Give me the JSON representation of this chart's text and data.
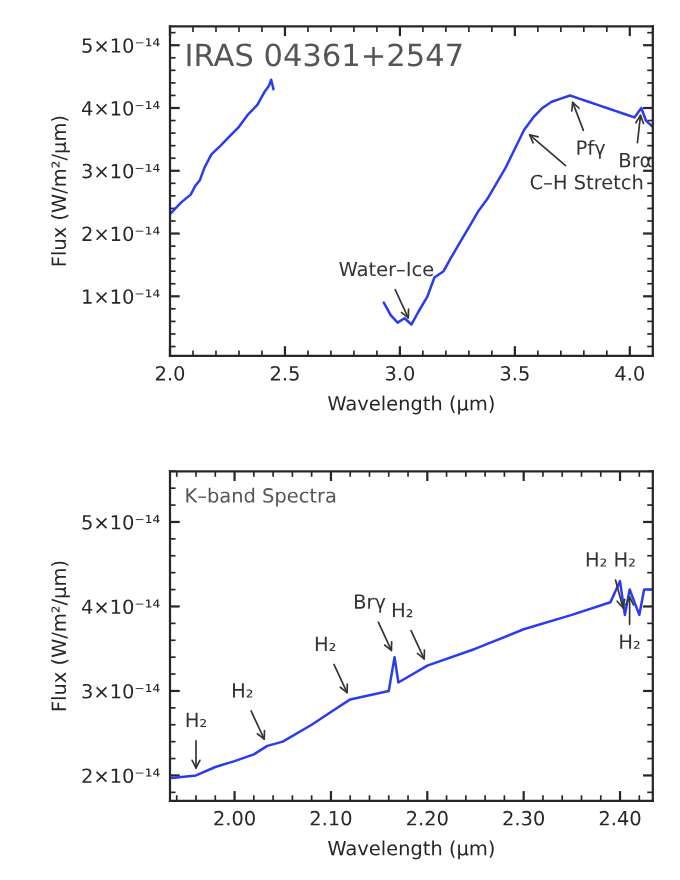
{
  "chart_data": [
    {
      "type": "line",
      "title": "IRAS 04361+2547",
      "xlabel": "Wavelength (µm)",
      "ylabel": "Flux (W/m²/µm)",
      "x": [
        2.0,
        2.05,
        2.09,
        2.11,
        2.13,
        2.15,
        2.18,
        2.22,
        2.26,
        2.3,
        2.34,
        2.38,
        2.41,
        2.43,
        2.44,
        2.45,
        2.7,
        2.93,
        2.96,
        2.99,
        3.02,
        3.05,
        3.08,
        3.12,
        3.15,
        3.19,
        3.22,
        3.26,
        3.3,
        3.34,
        3.38,
        3.42,
        3.46,
        3.5,
        3.54,
        3.58,
        3.62,
        3.66,
        3.7,
        3.74,
        3.78,
        3.82,
        3.86,
        3.9,
        3.94,
        3.98,
        4.02,
        4.05,
        4.07,
        4.1
      ],
      "series": [
        {
          "color": "#2b3cf0",
          "values": [
            2.31e-14,
            2.5e-14,
            2.62e-14,
            2.76e-14,
            2.85e-14,
            3.05e-14,
            3.26e-14,
            3.4e-14,
            3.55e-14,
            3.7e-14,
            3.9e-14,
            4.05e-14,
            4.25e-14,
            4.35e-14,
            4.45e-14,
            4.3e-14,
            null,
            9e-15,
            7e-15,
            5.8e-15,
            6.5e-15,
            5.5e-15,
            7.5e-15,
            1e-14,
            1.3e-14,
            1.4e-14,
            1.6e-14,
            1.85e-14,
            2.1e-14,
            2.35e-14,
            2.55e-14,
            2.8e-14,
            3.05e-14,
            3.35e-14,
            3.65e-14,
            3.85e-14,
            4e-14,
            4.1e-14,
            4.15e-14,
            4.2e-14,
            4.15e-14,
            4.1e-14,
            4.05e-14,
            4e-14,
            3.95e-14,
            3.9e-14,
            3.85e-14,
            4e-14,
            3.8e-14,
            3.7e-14
          ]
        }
      ],
      "xlim": [
        2.0,
        4.1
      ],
      "ylim": [
        5e-16,
        5.3e-14
      ],
      "xticks": [
        {
          "value": 2.0,
          "label": "2.0"
        },
        2.5,
        {
          "value": 3.0,
          "label": "3.0"
        },
        3.5,
        {
          "value": 4.0,
          "label": "4.0"
        }
      ],
      "yticks": [
        {
          "value": 1e-14,
          "label": "1×10⁻¹⁴"
        },
        {
          "value": 2e-14,
          "label": "2×10⁻¹⁴"
        },
        {
          "value": 3e-14,
          "label": "3×10⁻¹⁴"
        },
        {
          "value": 4e-14,
          "label": "4×10⁻¹⁴"
        },
        {
          "value": 5e-14,
          "label": "5×10⁻¹⁴"
        }
      ],
      "annotations": [
        {
          "text": "Water–Ice",
          "x": 3.05,
          "y": 5.5e-15
        },
        {
          "text": "C–H Stretch",
          "x": 3.54,
          "y": 3.65e-14
        },
        {
          "text": "Pfγ",
          "x": 3.74,
          "y": 4.2e-14
        },
        {
          "text": "Brα",
          "x": 4.05,
          "y": 4e-14
        }
      ]
    },
    {
      "type": "line",
      "title": "K–band Spectra",
      "xlabel": "Wavelength (µm)",
      "ylabel": "Flux (W/m²/µm)",
      "x": [
        1.935,
        1.96,
        1.98,
        2.0,
        2.02,
        2.034,
        2.05,
        2.08,
        2.1,
        2.12,
        2.14,
        2.16,
        2.166,
        2.17,
        2.2,
        2.25,
        2.3,
        2.35,
        2.39,
        2.4,
        2.405,
        2.41,
        2.42,
        2.425,
        2.434
      ],
      "series": [
        {
          "color": "#2b3cf0",
          "values": [
            1.97e-14,
            2e-14,
            2.1e-14,
            2.17e-14,
            2.25e-14,
            2.35e-14,
            2.4e-14,
            2.6e-14,
            2.75e-14,
            2.9e-14,
            2.95e-14,
            3e-14,
            3.4e-14,
            3.1e-14,
            3.3e-14,
            3.5e-14,
            3.73e-14,
            3.9e-14,
            4.05e-14,
            4.3e-14,
            3.9e-14,
            4.2e-14,
            3.9e-14,
            4.2e-14,
            4.2e-14
          ]
        }
      ],
      "xlim": [
        1.933,
        2.434
      ],
      "ylim": [
        1.7e-14,
        5.6e-14
      ],
      "xticks": [
        {
          "value": 2.0,
          "label": "2.00"
        },
        {
          "value": 2.1,
          "label": "2.10"
        },
        {
          "value": 2.2,
          "label": "2.20"
        },
        {
          "value": 2.3,
          "label": "2.30"
        },
        {
          "value": 2.4,
          "label": "2.40"
        }
      ],
      "yticks": [
        {
          "value": 2e-14,
          "label": "2×10⁻¹⁴"
        },
        {
          "value": 3e-14,
          "label": "3×10⁻¹⁴"
        },
        {
          "value": 4e-14,
          "label": "4×10⁻¹⁴"
        },
        {
          "value": 5e-14,
          "label": "5×10⁻¹⁴"
        }
      ],
      "annotations": [
        {
          "text": "H₂",
          "x": 1.96,
          "y": 2e-14
        },
        {
          "text": "H₂",
          "x": 2.034,
          "y": 2.35e-14
        },
        {
          "text": "H₂",
          "x": 2.12,
          "y": 2.9e-14
        },
        {
          "text": "Brγ",
          "x": 2.166,
          "y": 3.4e-14
        },
        {
          "text": "H₂",
          "x": 2.2,
          "y": 3.3e-14
        },
        {
          "text": "H₂ H₂",
          "x": 2.405,
          "y": 3.9e-14
        },
        {
          "text": "H₂",
          "x": 2.41,
          "y": 4.2e-14
        }
      ]
    }
  ]
}
